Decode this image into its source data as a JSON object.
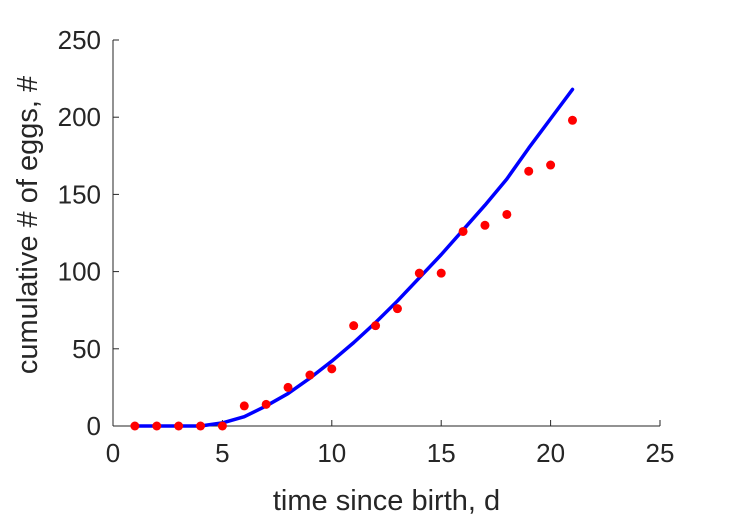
{
  "chart_data": {
    "type": "scatter",
    "xlabel": "time since birth, d",
    "ylabel": "cumulative # of eggs, #",
    "xlim": [
      0,
      25
    ],
    "ylim": [
      0,
      250
    ],
    "xticks": [
      0,
      5,
      10,
      15,
      20,
      25
    ],
    "yticks": [
      0,
      50,
      100,
      150,
      200,
      250
    ],
    "grid": false,
    "series": [
      {
        "kind": "scatter",
        "color": "#ff0000",
        "x": [
          1,
          2,
          3,
          4,
          5,
          6,
          7,
          8,
          9,
          10,
          11,
          12,
          13,
          14,
          15,
          16,
          17,
          18,
          19,
          20,
          21
        ],
        "y": [
          0,
          0,
          0,
          0,
          0,
          13,
          14,
          25,
          33,
          37,
          65,
          65,
          76,
          99,
          99,
          126,
          130,
          137,
          165,
          169,
          198
        ]
      },
      {
        "kind": "line",
        "color": "#0000ff",
        "x": [
          1,
          4,
          5,
          6,
          7,
          8,
          9,
          10,
          11,
          12,
          13,
          14,
          15,
          16,
          17,
          18,
          19,
          20,
          21
        ],
        "y": [
          0,
          0,
          2,
          6,
          13,
          21,
          31,
          42,
          54,
          67,
          81,
          96,
          111,
          127,
          143,
          160,
          180,
          199,
          218
        ]
      }
    ]
  }
}
